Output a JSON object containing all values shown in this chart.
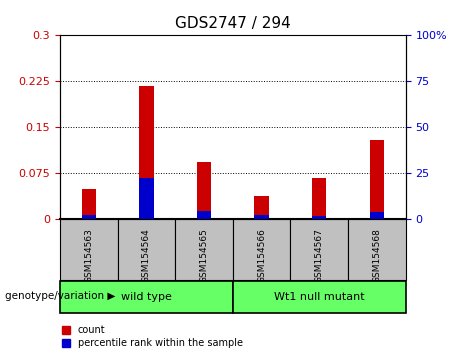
{
  "title": "GDS2747 / 294",
  "samples": [
    "GSM154563",
    "GSM154564",
    "GSM154565",
    "GSM154566",
    "GSM154567",
    "GSM154568"
  ],
  "red_values": [
    0.05,
    0.218,
    0.093,
    0.038,
    0.068,
    0.13
  ],
  "blue_values_left": [
    0.008,
    0.068,
    0.014,
    0.007,
    0.005,
    0.012
  ],
  "ylim_left": [
    0,
    0.3
  ],
  "ylim_right": [
    0,
    100
  ],
  "yticks_left": [
    0,
    0.075,
    0.15,
    0.225,
    0.3
  ],
  "ytick_labels_left": [
    "0",
    "0.075",
    "0.15",
    "0.225",
    "0.3"
  ],
  "yticks_right": [
    0,
    25,
    50,
    75,
    100
  ],
  "ytick_labels_right": [
    "0",
    "25",
    "50",
    "75",
    "100%"
  ],
  "groups": [
    {
      "label": "wild type",
      "start": 0,
      "end": 2
    },
    {
      "label": "Wt1 null mutant",
      "start": 3,
      "end": 5
    }
  ],
  "group_label_prefix": "genotype/variation",
  "red_color": "#CC0000",
  "blue_color": "#0000CC",
  "bar_bg_color": "#C0C0C0",
  "group_bg_color": "#66FF66",
  "legend_red": "count",
  "legend_blue": "percentile rank within the sample",
  "title_fontsize": 11,
  "tick_label_fontsize": 8,
  "bar_width": 0.25
}
